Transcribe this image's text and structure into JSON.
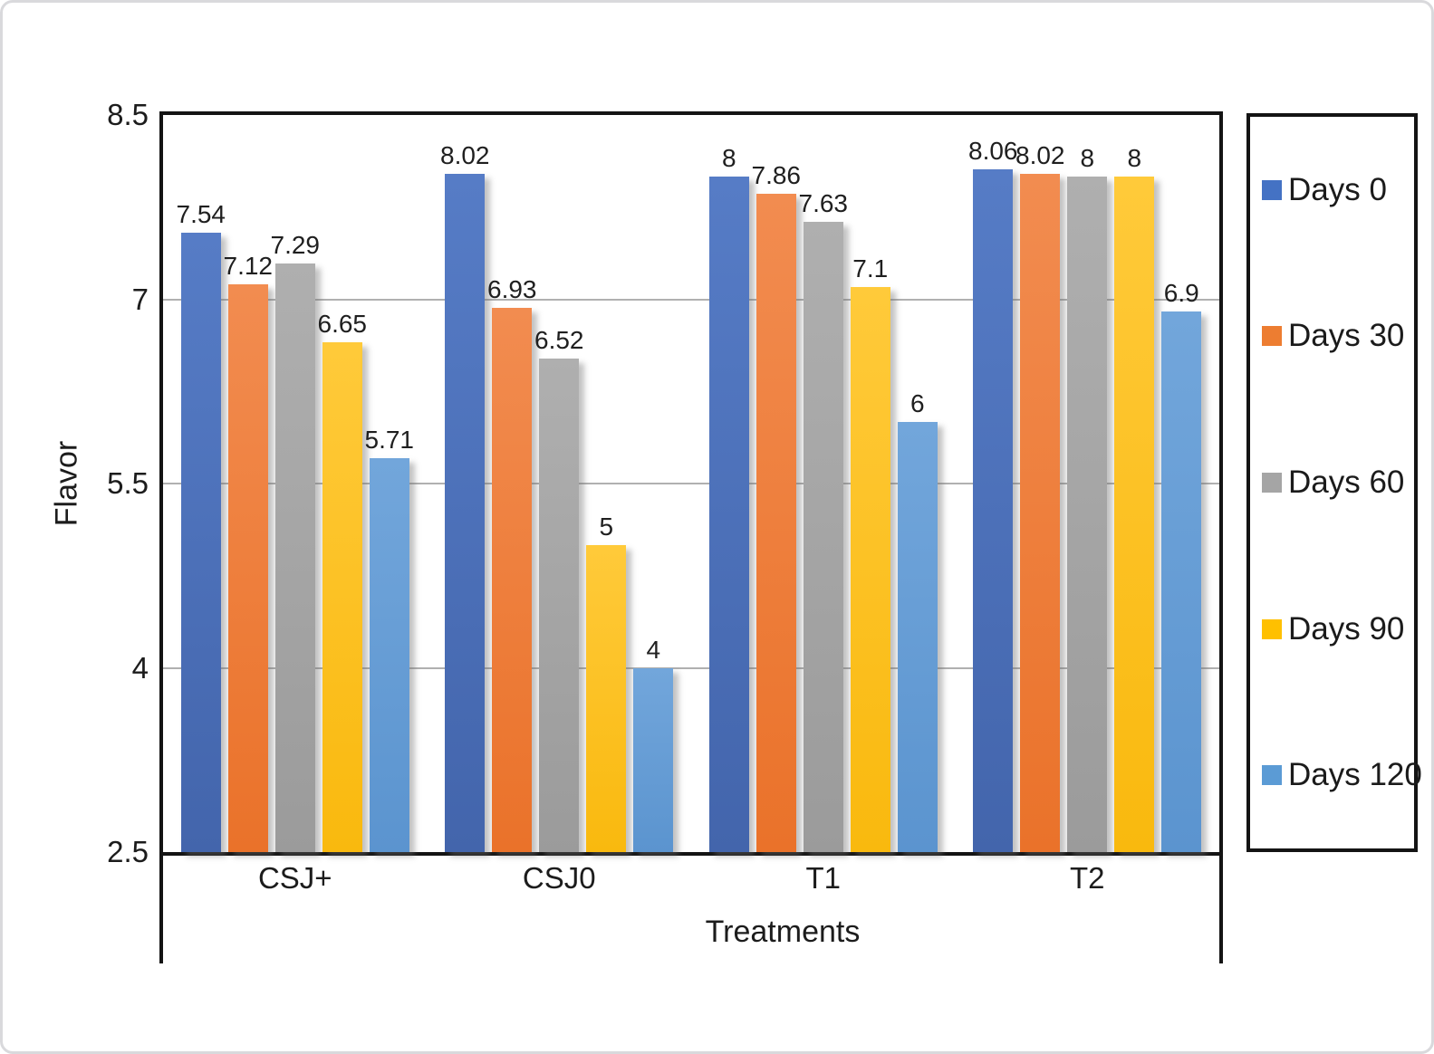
{
  "window": {
    "background": "#ffffff",
    "outer_border_color": "#d9d9dc"
  },
  "chart_data": {
    "type": "bar",
    "title": "",
    "xlabel": "Treatments",
    "ylabel": "Flavor",
    "categories": [
      "CSJ+",
      "CSJ0",
      "T1",
      "T2"
    ],
    "series": [
      {
        "name": "Days 0",
        "color": "#4472C4",
        "gradient": [
          "#567CC6",
          "#4365AC"
        ],
        "values": [
          7.54,
          8.02,
          8,
          8.06
        ]
      },
      {
        "name": "Days 30",
        "color": "#ED7D31",
        "gradient": [
          "#F28C50",
          "#EA722A"
        ],
        "values": [
          7.12,
          6.93,
          7.86,
          8.02
        ]
      },
      {
        "name": "Days 60",
        "color": "#A5A5A5",
        "gradient": [
          "#AFAFAF",
          "#9B9B9B"
        ],
        "values": [
          7.29,
          6.52,
          7.63,
          8
        ]
      },
      {
        "name": "Days 90",
        "color": "#FFC000",
        "gradient": [
          "#FFCA3A",
          "#F9B90E"
        ],
        "values": [
          6.65,
          5,
          7.1,
          8
        ]
      },
      {
        "name": "Days 120",
        "color": "#5B9BD5",
        "gradient": [
          "#72A6DB",
          "#5B94CF"
        ],
        "values": [
          5.71,
          4,
          6,
          6.9
        ]
      }
    ],
    "ylim": [
      2.5,
      8.5
    ],
    "yticks": [
      2.5,
      4,
      5.5,
      7,
      8.5
    ],
    "grid": "horizontal",
    "gridline_color": "#B0B0B0",
    "axis_color": "#141414",
    "text_color": "#1c1c1c",
    "legend_position": "right",
    "value_labels": true
  }
}
